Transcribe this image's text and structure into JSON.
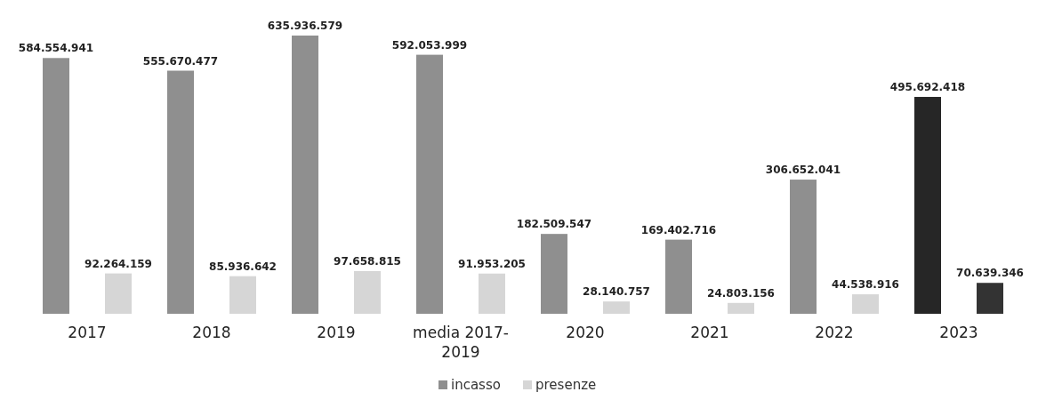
{
  "chart_data": {
    "type": "bar",
    "categories": [
      "2017",
      "2018",
      "2019",
      "media 2017-2019",
      "2020",
      "2021",
      "2022",
      "2023"
    ],
    "series": [
      {
        "name": "incasso",
        "color": "#8f8f8f",
        "colors": [
          "#8f8f8f",
          "#8f8f8f",
          "#8f8f8f",
          "#8f8f8f",
          "#8f8f8f",
          "#8f8f8f",
          "#8f8f8f",
          "#262626"
        ],
        "values": [
          584554941,
          555670477,
          635936579,
          592053999,
          182509547,
          169402716,
          306652041,
          495692418
        ],
        "value_labels": [
          "584.554.941",
          "555.670.477",
          "635.936.579",
          "592.053.999",
          "182.509.547",
          "169.402.716",
          "306.652.041",
          "495.692.418"
        ]
      },
      {
        "name": "presenze",
        "color": "#d6d6d6",
        "colors": [
          "#d6d6d6",
          "#d6d6d6",
          "#d6d6d6",
          "#d6d6d6",
          "#d6d6d6",
          "#d6d6d6",
          "#d6d6d6",
          "#333333"
        ],
        "values": [
          92264159,
          85936642,
          97658815,
          91953205,
          28140757,
          24803156,
          44538916,
          70639346
        ],
        "value_labels": [
          "92.264.159",
          "85.936.642",
          "97.658.815",
          "91.953.205",
          "28.140.757",
          "24.803.156",
          "44.538.916",
          "70.639.346"
        ]
      }
    ],
    "legend": "bottom"
  }
}
